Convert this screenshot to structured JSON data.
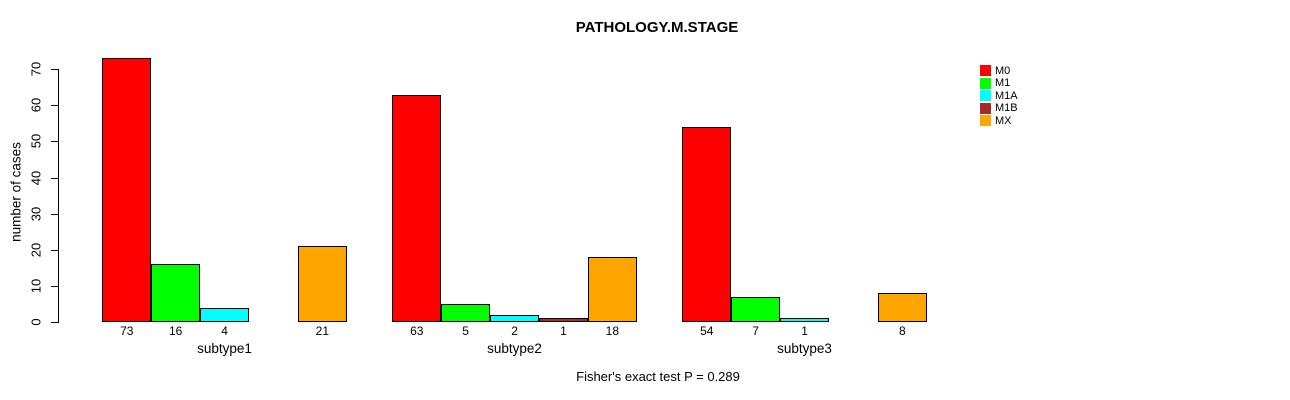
{
  "chart_data": {
    "type": "bar",
    "title": "PATHOLOGY.M.STAGE",
    "ylabel": "number of cases",
    "xlabel": "",
    "footnote": "Fisher's exact test P = 0.289",
    "categories": [
      "subtype1",
      "subtype2",
      "subtype3"
    ],
    "series": [
      {
        "name": "M0",
        "color": "#FF0000",
        "values": [
          73,
          63,
          54
        ]
      },
      {
        "name": "M1",
        "color": "#00FF00",
        "values": [
          16,
          5,
          7
        ]
      },
      {
        "name": "M1A",
        "color": "#00FFFF",
        "values": [
          4,
          2,
          1
        ]
      },
      {
        "name": "M1B",
        "color": "#A52A2A",
        "values": [
          0,
          1,
          0
        ]
      },
      {
        "name": "MX",
        "color": "#FFA500",
        "values": [
          21,
          18,
          8
        ]
      }
    ],
    "y_ticks": [
      0,
      10,
      20,
      30,
      40,
      50,
      60,
      70
    ],
    "ylim": [
      0,
      73
    ],
    "grid": false,
    "bar_value_labels_shown": true,
    "zero_value_bars_hidden": true,
    "legend": {
      "position": "top-right",
      "entries": [
        "M0",
        "M1",
        "M1A",
        "M1B",
        "MX"
      ]
    },
    "background_color": "#FFFFFF",
    "axis_color": "#000000"
  }
}
